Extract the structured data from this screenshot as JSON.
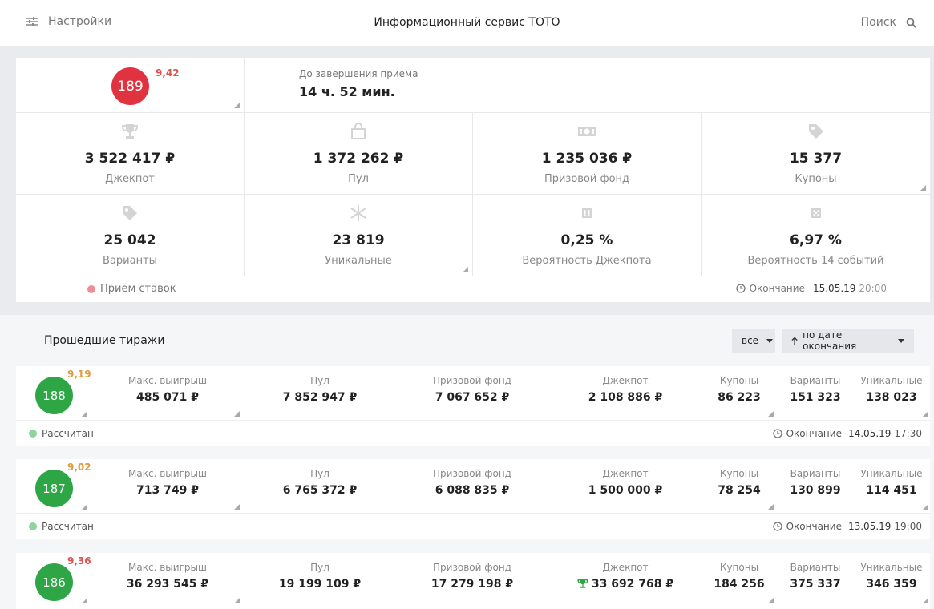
{
  "header": {
    "settings_label": "Настройки",
    "title": "Информационный сервис TOTO",
    "search_label": "Поиск"
  },
  "current": {
    "number": "189",
    "coef": "9,42",
    "deadline_label": "До завершения приема",
    "deadline_value": "14 ч. 52 мин.",
    "stats": [
      {
        "icon": "trophy-icon",
        "value": "3 522 417 ₽",
        "label": "Джекпот"
      },
      {
        "icon": "bag-icon",
        "value": "1 372 262 ₽",
        "label": "Пул"
      },
      {
        "icon": "money-icon",
        "value": "1 235 036 ₽",
        "label": "Призовой фонд"
      },
      {
        "icon": "tag-icon",
        "value": "15 377",
        "label": "Купоны"
      },
      {
        "icon": "tag-icon",
        "value": "25 042",
        "label": "Варианты"
      },
      {
        "icon": "asterisk-icon",
        "value": "23 819",
        "label": "Уникальные"
      },
      {
        "icon": "dice-icon",
        "value": "0,25 %",
        "label": "Вероятность Джекпота"
      },
      {
        "icon": "dice-icon",
        "value": "6,97 %",
        "label": "Вероятность 14 событий"
      }
    ],
    "status": "Прием ставок",
    "end_label": "Окончание",
    "end_date": "15.05.19",
    "end_time": "20:00"
  },
  "past": {
    "title": "Прошедшие тиражи",
    "filter_label": "все",
    "sort_label": "по дате окончания",
    "columns": {
      "max_win": "Макс. выигрыш",
      "pool": "Пул",
      "prize_fund": "Призовой фонд",
      "jackpot": "Джекпот",
      "coupons": "Купоны",
      "variants": "Варианты",
      "unique": "Уникальные"
    },
    "draws": [
      {
        "number": "188",
        "coef": "9,19",
        "coef_color": "#e09a3a",
        "max_win": "485 071 ₽",
        "pool": "7 852 947 ₽",
        "prize_fund": "7 067 652 ₽",
        "jackpot": "2 108 886 ₽",
        "jackpot_won": false,
        "coupons": "86 223",
        "variants": "151 323",
        "unique": "138 023",
        "status": "Рассчитан",
        "end_label": "Окончание",
        "end_date": "14.05.19",
        "end_time": "17:30"
      },
      {
        "number": "187",
        "coef": "9,02",
        "coef_color": "#e09a3a",
        "max_win": "713 749 ₽",
        "pool": "6 765 372 ₽",
        "prize_fund": "6 088 835 ₽",
        "jackpot": "1 500 000 ₽",
        "jackpot_won": false,
        "coupons": "78 254",
        "variants": "130 899",
        "unique": "114 451",
        "status": "Рассчитан",
        "end_label": "Окончание",
        "end_date": "13.05.19",
        "end_time": "19:00"
      },
      {
        "number": "186",
        "coef": "9,36",
        "coef_color": "#d9534f",
        "max_win": "36 293 545 ₽",
        "pool": "19 199 109 ₽",
        "prize_fund": "17 279 198 ₽",
        "jackpot": "33 692 768 ₽",
        "jackpot_won": true,
        "coupons": "184 256",
        "variants": "375 337",
        "unique": "346 359"
      }
    ]
  }
}
